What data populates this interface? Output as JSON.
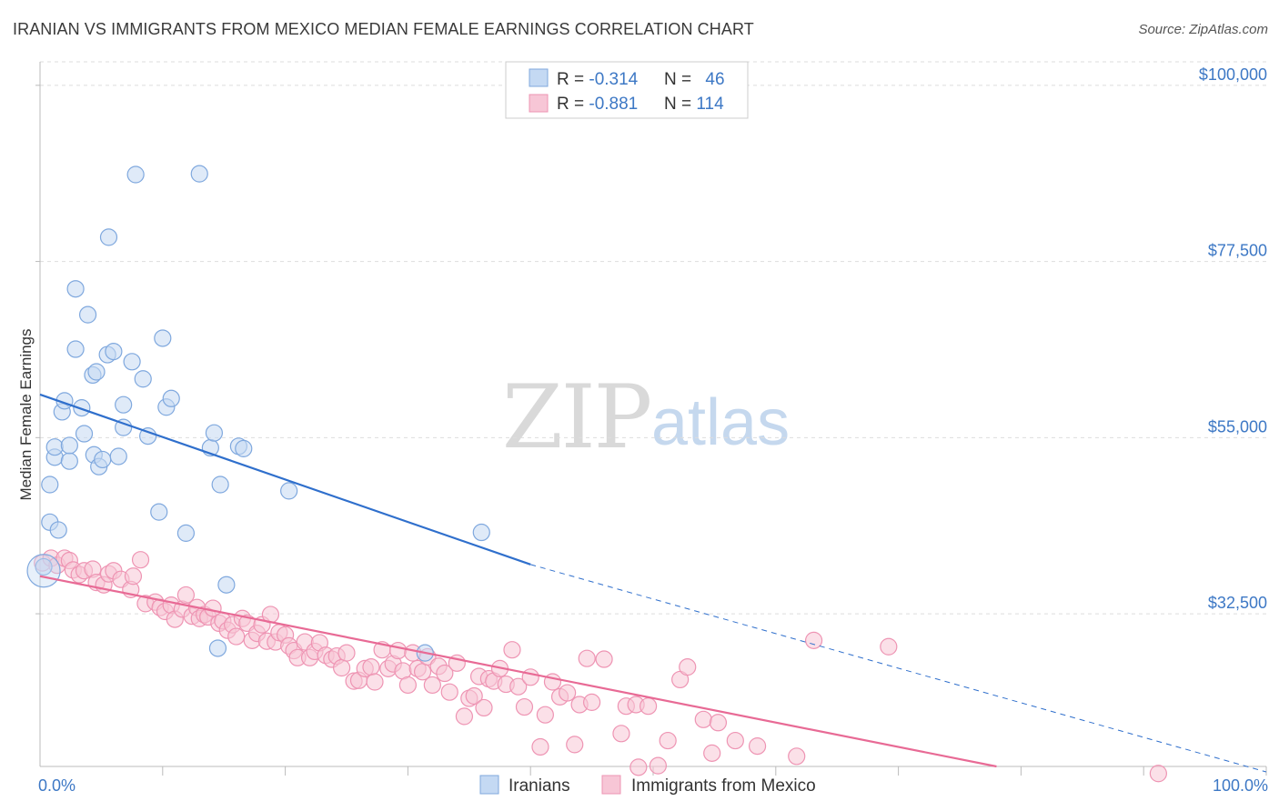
{
  "title": "IRANIAN VS IMMIGRANTS FROM MEXICO MEDIAN FEMALE EARNINGS CORRELATION CHART",
  "source": "Source: ZipAtlas.com",
  "watermark": {
    "zip": "ZIP",
    "atlas": "atlas"
  },
  "colors": {
    "blue": "#3d78c5",
    "blue_fill": "#c4d9f3",
    "blue_stroke": "#7fa8de",
    "blue_line": "#2f6fcc",
    "pink_fill": "#f7c6d6",
    "pink_stroke": "#ee94b3",
    "pink_line": "#e86a95",
    "grid": "#dddddd"
  },
  "legend": {
    "rows": [
      {
        "r_label": "R = ",
        "r_value": "-0.314",
        "n_label": "N = ",
        "n_value": "46"
      },
      {
        "r_label": "R = ",
        "r_value": "-0.881",
        "n_label": "N = ",
        "n_value": "114"
      }
    ]
  },
  "chart_data": {
    "type": "scatter",
    "title": "IRANIAN VS IMMIGRANTS FROM MEXICO MEDIAN FEMALE EARNINGS CORRELATION CHART",
    "xlabel": "",
    "ylabel": "Median Female Earnings",
    "xlim": [
      0,
      100
    ],
    "ylim": [
      13000,
      103000
    ],
    "x_tick_labels": [
      "0.0%",
      "100.0%"
    ],
    "y_ticks": [
      32500,
      55000,
      77500,
      100000
    ],
    "y_tick_labels": [
      "$32,500",
      "$55,000",
      "$77,500",
      "$100,000"
    ],
    "grid": true,
    "legend_position": "bottom",
    "series": [
      {
        "name": "Iranians",
        "color": "blue",
        "trend": {
          "x0": 0,
          "y0": 60500,
          "x1": 40,
          "y1": 38800,
          "dash_to_x": 100,
          "dash_to_y": 12300
        },
        "points": [
          [
            0.3,
            38500
          ],
          [
            0.8,
            44200
          ],
          [
            0.8,
            49000
          ],
          [
            1.5,
            43200
          ],
          [
            1.2,
            52500
          ],
          [
            1.2,
            53800
          ],
          [
            1.8,
            58300
          ],
          [
            2.0,
            59700
          ],
          [
            2.4,
            52000
          ],
          [
            2.4,
            54000
          ],
          [
            2.9,
            66300
          ],
          [
            2.9,
            74000
          ],
          [
            3.4,
            58800
          ],
          [
            3.6,
            55500
          ],
          [
            3.9,
            70700
          ],
          [
            4.3,
            63000
          ],
          [
            4.4,
            52800
          ],
          [
            4.6,
            63400
          ],
          [
            4.8,
            51300
          ],
          [
            5.1,
            52200
          ],
          [
            5.5,
            65600
          ],
          [
            5.6,
            80600
          ],
          [
            6.0,
            66000
          ],
          [
            6.4,
            52600
          ],
          [
            6.8,
            56300
          ],
          [
            6.8,
            59200
          ],
          [
            7.5,
            64700
          ],
          [
            7.8,
            88600
          ],
          [
            8.4,
            62500
          ],
          [
            8.8,
            55200
          ],
          [
            9.7,
            45500
          ],
          [
            10.0,
            67700
          ],
          [
            10.3,
            58900
          ],
          [
            10.7,
            60000
          ],
          [
            11.9,
            42800
          ],
          [
            13.0,
            88700
          ],
          [
            13.9,
            53700
          ],
          [
            14.2,
            55600
          ],
          [
            14.7,
            49000
          ],
          [
            15.2,
            36200
          ],
          [
            14.5,
            28100
          ],
          [
            16.2,
            53900
          ],
          [
            16.6,
            53600
          ],
          [
            20.3,
            48200
          ],
          [
            31.4,
            27500
          ],
          [
            36.0,
            42900
          ]
        ]
      },
      {
        "name": "Immigrants from Mexico",
        "color": "pink",
        "trend": {
          "x0": 0,
          "y0": 37300,
          "x1": 78,
          "y1": 13000
        },
        "points": [
          [
            0.2,
            39000
          ],
          [
            0.9,
            39600
          ],
          [
            1.4,
            38700
          ],
          [
            2.0,
            39600
          ],
          [
            2.4,
            39300
          ],
          [
            2.7,
            38100
          ],
          [
            3.2,
            37500
          ],
          [
            3.6,
            38000
          ],
          [
            4.3,
            38200
          ],
          [
            4.6,
            36500
          ],
          [
            5.2,
            36200
          ],
          [
            5.6,
            37600
          ],
          [
            6.0,
            38000
          ],
          [
            6.6,
            36900
          ],
          [
            7.4,
            35600
          ],
          [
            7.6,
            37300
          ],
          [
            8.2,
            39400
          ],
          [
            8.6,
            33800
          ],
          [
            9.4,
            34000
          ],
          [
            9.8,
            33300
          ],
          [
            10.2,
            32800
          ],
          [
            10.7,
            33600
          ],
          [
            11.0,
            31800
          ],
          [
            11.6,
            33100
          ],
          [
            11.9,
            34900
          ],
          [
            12.4,
            32200
          ],
          [
            12.8,
            33300
          ],
          [
            13.0,
            31900
          ],
          [
            13.4,
            32400
          ],
          [
            13.7,
            32100
          ],
          [
            14.1,
            33200
          ],
          [
            14.6,
            31300
          ],
          [
            14.9,
            31600
          ],
          [
            15.3,
            30400
          ],
          [
            15.7,
            31100
          ],
          [
            16.0,
            29600
          ],
          [
            16.5,
            31900
          ],
          [
            16.9,
            31300
          ],
          [
            17.3,
            29100
          ],
          [
            17.7,
            30000
          ],
          [
            18.1,
            31100
          ],
          [
            18.5,
            29000
          ],
          [
            18.8,
            32400
          ],
          [
            19.2,
            28900
          ],
          [
            19.5,
            30100
          ],
          [
            20.0,
            29800
          ],
          [
            20.3,
            28400
          ],
          [
            20.7,
            27800
          ],
          [
            21.0,
            26900
          ],
          [
            21.6,
            28900
          ],
          [
            22.0,
            26900
          ],
          [
            22.4,
            27700
          ],
          [
            22.8,
            28800
          ],
          [
            23.3,
            27200
          ],
          [
            23.8,
            26700
          ],
          [
            24.2,
            27100
          ],
          [
            24.6,
            25600
          ],
          [
            25.0,
            27500
          ],
          [
            25.6,
            23900
          ],
          [
            26.0,
            24000
          ],
          [
            26.5,
            25500
          ],
          [
            27.0,
            25700
          ],
          [
            27.3,
            23800
          ],
          [
            27.9,
            27900
          ],
          [
            28.4,
            25500
          ],
          [
            28.8,
            26100
          ],
          [
            29.2,
            27800
          ],
          [
            29.6,
            25200
          ],
          [
            30.0,
            23400
          ],
          [
            30.4,
            27500
          ],
          [
            30.8,
            25500
          ],
          [
            31.2,
            25100
          ],
          [
            31.6,
            27000
          ],
          [
            32.0,
            23400
          ],
          [
            32.5,
            25800
          ],
          [
            33.0,
            24900
          ],
          [
            33.4,
            22500
          ],
          [
            34.0,
            26200
          ],
          [
            34.6,
            19400
          ],
          [
            35.0,
            21700
          ],
          [
            35.4,
            22000
          ],
          [
            35.8,
            24500
          ],
          [
            36.2,
            20500
          ],
          [
            36.6,
            24200
          ],
          [
            37.0,
            23900
          ],
          [
            37.5,
            25500
          ],
          [
            38.0,
            23500
          ],
          [
            38.5,
            27900
          ],
          [
            39.0,
            23200
          ],
          [
            39.5,
            20600
          ],
          [
            40.0,
            24400
          ],
          [
            40.8,
            15500
          ],
          [
            41.2,
            19600
          ],
          [
            41.8,
            23800
          ],
          [
            42.4,
            21900
          ],
          [
            43.0,
            22400
          ],
          [
            43.6,
            15800
          ],
          [
            44.0,
            20900
          ],
          [
            44.6,
            26800
          ],
          [
            45.0,
            21200
          ],
          [
            46.0,
            26700
          ],
          [
            47.4,
            17200
          ],
          [
            47.8,
            20700
          ],
          [
            48.6,
            20900
          ],
          [
            48.8,
            12900
          ],
          [
            49.6,
            20700
          ],
          [
            50.4,
            13100
          ],
          [
            51.2,
            16300
          ],
          [
            52.2,
            24100
          ],
          [
            52.8,
            25700
          ],
          [
            54.1,
            19000
          ],
          [
            54.8,
            14700
          ],
          [
            55.3,
            18600
          ],
          [
            56.7,
            16300
          ],
          [
            58.5,
            15600
          ],
          [
            61.7,
            14300
          ],
          [
            63.1,
            29100
          ],
          [
            69.2,
            28300
          ],
          [
            91.2,
            12100
          ]
        ]
      }
    ]
  }
}
